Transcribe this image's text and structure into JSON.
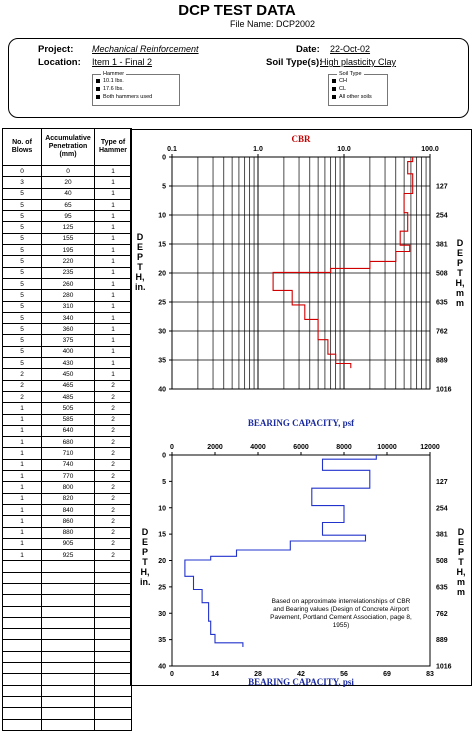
{
  "header": {
    "title": "DCP TEST DATA",
    "file_label": "File Name:",
    "file_name": "DCP2002",
    "project_label": "Project:",
    "project": "Mechanical Reinforcement",
    "location_label": "Location:",
    "location": "Item 1 - Final 2",
    "date_label": "Date:",
    "date": "22-Oct-02",
    "soil_label": "Soil Type(s):",
    "soil": "High plasticity Clay",
    "hammer_caption": "Hammer",
    "hammer_options": [
      "10.1 lbs.",
      "17.6 lbs.",
      "Both hammers used"
    ],
    "soil_caption": "Soil Type",
    "soil_options": [
      "CH",
      "CL",
      "All other soils"
    ]
  },
  "table": {
    "headers": [
      "No. of Blows",
      "Accumulative Penetration (mm)",
      "Type of Hammer"
    ],
    "rows": [
      [
        "0",
        "0",
        "1"
      ],
      [
        "3",
        "20",
        "1"
      ],
      [
        "5",
        "40",
        "1"
      ],
      [
        "5",
        "65",
        "1"
      ],
      [
        "5",
        "95",
        "1"
      ],
      [
        "5",
        "125",
        "1"
      ],
      [
        "5",
        "155",
        "1"
      ],
      [
        "5",
        "195",
        "1"
      ],
      [
        "5",
        "220",
        "1"
      ],
      [
        "5",
        "235",
        "1"
      ],
      [
        "5",
        "260",
        "1"
      ],
      [
        "5",
        "280",
        "1"
      ],
      [
        "5",
        "310",
        "1"
      ],
      [
        "5",
        "340",
        "1"
      ],
      [
        "5",
        "360",
        "1"
      ],
      [
        "5",
        "375",
        "1"
      ],
      [
        "5",
        "400",
        "1"
      ],
      [
        "5",
        "430",
        "1"
      ],
      [
        "2",
        "450",
        "1"
      ],
      [
        "2",
        "465",
        "2"
      ],
      [
        "2",
        "485",
        "2"
      ],
      [
        "1",
        "505",
        "2"
      ],
      [
        "1",
        "585",
        "2"
      ],
      [
        "1",
        "640",
        "2"
      ],
      [
        "1",
        "680",
        "2"
      ],
      [
        "1",
        "710",
        "2"
      ],
      [
        "1",
        "740",
        "2"
      ],
      [
        "1",
        "770",
        "2"
      ],
      [
        "1",
        "800",
        "2"
      ],
      [
        "1",
        "820",
        "2"
      ],
      [
        "1",
        "840",
        "2"
      ],
      [
        "1",
        "860",
        "2"
      ],
      [
        "1",
        "880",
        "2"
      ],
      [
        "1",
        "905",
        "2"
      ],
      [
        "1",
        "925",
        "2"
      ],
      [
        "",
        "",
        ""
      ],
      [
        "",
        "",
        ""
      ],
      [
        "",
        "",
        ""
      ],
      [
        "",
        "",
        ""
      ],
      [
        "",
        "",
        ""
      ],
      [
        "",
        "",
        ""
      ],
      [
        "",
        "",
        ""
      ],
      [
        "",
        "",
        ""
      ],
      [
        "",
        "",
        ""
      ],
      [
        "",
        "",
        ""
      ],
      [
        "",
        "",
        ""
      ],
      [
        "",
        "",
        ""
      ],
      [
        "",
        "",
        ""
      ],
      [
        "",
        "",
        ""
      ],
      [
        "",
        "",
        ""
      ]
    ]
  },
  "side_labels": {
    "depth_in": "D E P T H, in.",
    "depth_mm": "D E P T H, m m"
  },
  "chart_data": [
    {
      "type": "line",
      "title": "CBR",
      "x_scale": "log",
      "xlim": [
        0.1,
        100
      ],
      "x_ticks": [
        "0.1",
        "1.0",
        "10.0",
        "100.0"
      ],
      "ylim": [
        0,
        40
      ],
      "y_ticks": [
        "0",
        "5",
        "10",
        "15",
        "20",
        "25",
        "30",
        "35",
        "40"
      ],
      "y2_ticks": [
        "127",
        "254",
        "381",
        "508",
        "635",
        "762",
        "889",
        "1016"
      ],
      "grid": true,
      "series": [
        {
          "color": "#d00000",
          "points": [
            [
              63,
              0
            ],
            [
              63,
              0.8
            ],
            [
              55,
              0.8
            ],
            [
              55,
              2.9
            ],
            [
              63,
              2.9
            ],
            [
              63,
              6.3
            ],
            [
              50,
              6.3
            ],
            [
              50,
              9.6
            ],
            [
              55,
              9.6
            ],
            [
              55,
              12.8
            ],
            [
              45,
              12.8
            ],
            [
              45,
              15.2
            ],
            [
              58,
              15.2
            ],
            [
              58,
              16.3
            ],
            [
              40,
              16.3
            ],
            [
              40,
              18.0
            ],
            [
              20,
              18.0
            ],
            [
              20,
              19.2
            ],
            [
              7,
              19.2
            ],
            [
              7,
              19.9
            ],
            [
              1.5,
              19.9
            ],
            [
              1.5,
              23.0
            ],
            [
              2.5,
              23.0
            ],
            [
              2.5,
              25.5
            ],
            [
              3.5,
              25.5
            ],
            [
              3.5,
              28.0
            ],
            [
              5,
              28.0
            ],
            [
              5,
              31.5
            ],
            [
              6.5,
              31.5
            ],
            [
              6.5,
              34.0
            ],
            [
              8,
              34.0
            ],
            [
              8,
              35.6
            ],
            [
              12,
              35.6
            ],
            [
              12,
              36.4
            ]
          ]
        }
      ]
    },
    {
      "type": "line",
      "title": "BEARING CAPACITY, psf",
      "xlabel": "BEARING CAPACITY, psi",
      "xlim": [
        0,
        12000
      ],
      "x_ticks": [
        "0",
        "2000",
        "4000",
        "6000",
        "8000",
        "10000",
        "12000"
      ],
      "x2_ticks": [
        "0",
        "14",
        "28",
        "42",
        "56",
        "69",
        "83"
      ],
      "ylim": [
        0,
        40
      ],
      "y_ticks": [
        "0",
        "5",
        "10",
        "15",
        "20",
        "25",
        "30",
        "35",
        "40"
      ],
      "y2_ticks": [
        "127",
        "254",
        "381",
        "508",
        "635",
        "762",
        "889",
        "1016"
      ],
      "grid": false,
      "series": [
        {
          "color": "#2233cc",
          "points": [
            [
              9500,
              0
            ],
            [
              9500,
              0.8
            ],
            [
              7000,
              0.8
            ],
            [
              7000,
              2.9
            ],
            [
              9200,
              2.9
            ],
            [
              9200,
              6.3
            ],
            [
              6500,
              6.3
            ],
            [
              6500,
              9.6
            ],
            [
              8000,
              9.6
            ],
            [
              8000,
              12.8
            ],
            [
              7000,
              12.8
            ],
            [
              7000,
              15.2
            ],
            [
              9000,
              15.2
            ],
            [
              9000,
              16.3
            ],
            [
              5500,
              16.3
            ],
            [
              5500,
              18.0
            ],
            [
              3000,
              18.0
            ],
            [
              3000,
              19.2
            ],
            [
              1800,
              19.2
            ],
            [
              1800,
              19.9
            ],
            [
              600,
              19.9
            ],
            [
              600,
              23.0
            ],
            [
              1000,
              23.0
            ],
            [
              1000,
              25.5
            ],
            [
              1400,
              25.5
            ],
            [
              1400,
              28.0
            ],
            [
              1700,
              28.0
            ],
            [
              1700,
              31.5
            ],
            [
              1800,
              31.5
            ],
            [
              1800,
              34.0
            ],
            [
              2000,
              34.0
            ],
            [
              2000,
              35.6
            ],
            [
              3300,
              35.6
            ],
            [
              3300,
              36.4
            ]
          ]
        }
      ],
      "annotation": "Based on approximate interrelationships of CBR and Bearing values (Design of Concrete Airport Pavement, Portland Cement Association, page 8, 1955)"
    }
  ]
}
